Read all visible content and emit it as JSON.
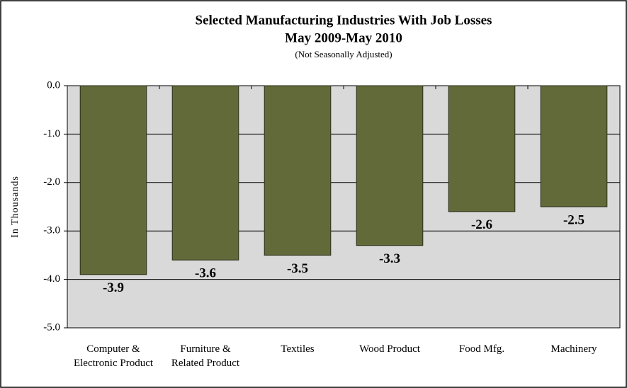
{
  "chart_data": {
    "type": "bar",
    "title": "Selected Manufacturing Industries With Job Losses",
    "subtitle": "May 2009-May 2010",
    "note": "(Not Seasonally Adjusted)",
    "y_label": "In Thousands",
    "categories": [
      "Computer & Electronic Product",
      "Furniture & Related Product",
      "Textiles",
      "Wood Product",
      "Food Mfg.",
      "Machinery"
    ],
    "values": [
      -3.9,
      -3.6,
      -3.5,
      -3.3,
      -2.6,
      -2.5
    ],
    "color": "#626a39",
    "ylim": [
      -5,
      0
    ],
    "yticks": [
      {
        "value": 0,
        "label": "0.0"
      },
      {
        "value": -1,
        "label": "-1.0"
      },
      {
        "value": -2,
        "label": "-2.0"
      },
      {
        "value": -3,
        "label": "-3.0"
      },
      {
        "value": -4,
        "label": "-4.0"
      },
      {
        "value": -5,
        "label": "-5.0"
      }
    ],
    "grid": true
  }
}
